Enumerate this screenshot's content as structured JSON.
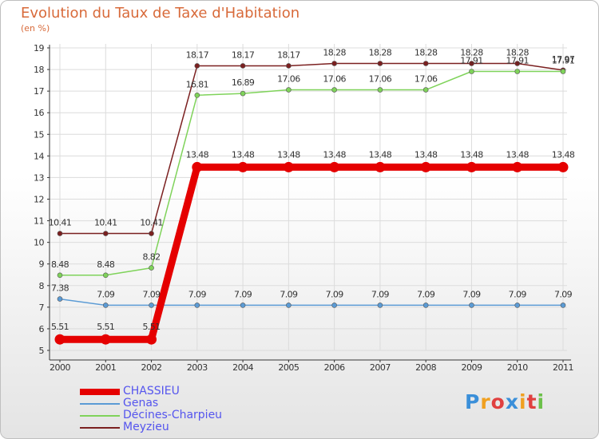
{
  "chart_data": {
    "type": "line",
    "title": "Evolution du Taux de Taxe d'Habitation",
    "ylabel": "(en %)",
    "xlabel": "",
    "x": [
      2000,
      2001,
      2002,
      2003,
      2004,
      2005,
      2006,
      2007,
      2008,
      2009,
      2010,
      2011
    ],
    "ylim": [
      5,
      19
    ],
    "yticks": [
      5,
      6,
      7,
      8,
      9,
      10,
      11,
      12,
      13,
      14,
      15,
      16,
      17,
      18,
      19
    ],
    "grid": true,
    "legend_position": "bottom-left",
    "series": [
      {
        "name": "CHASSIEU",
        "color": "#e50000",
        "values": [
          5.51,
          5.51,
          5.51,
          13.48,
          13.48,
          13.48,
          13.48,
          13.48,
          13.48,
          13.48,
          13.48,
          13.48
        ],
        "labels": [
          "5.51",
          "5.51",
          "5.51",
          "13.48",
          "13.48",
          "13.48",
          "13.48",
          "13.48",
          "13.48",
          "13.48",
          "13.48",
          "13.48"
        ]
      },
      {
        "name": "Genas",
        "color": "#5b9bd5",
        "values": [
          7.38,
          7.09,
          7.09,
          7.09,
          7.09,
          7.09,
          7.09,
          7.09,
          7.09,
          7.09,
          7.09,
          7.09
        ],
        "labels": [
          "7.38",
          "7.09",
          "7.09",
          "7.09",
          "7.09",
          "7.09",
          "7.09",
          "7.09",
          "7.09",
          "7.09",
          "7.09",
          "7.09"
        ]
      },
      {
        "name": "Décines-Charpieu",
        "color": "#7fd35a",
        "values": [
          8.48,
          8.48,
          8.82,
          16.81,
          16.89,
          17.06,
          17.06,
          17.06,
          17.06,
          17.91,
          17.91,
          17.91
        ],
        "labels": [
          "8.48",
          "8.48",
          "8.82",
          "16.81",
          "16.89",
          "17.06",
          "17.06",
          "17.06",
          "17.06",
          "17.91",
          "17.91",
          "17.91"
        ]
      },
      {
        "name": "Meyzieu",
        "color": "#7b2020",
        "values": [
          10.41,
          10.41,
          10.41,
          18.17,
          18.17,
          18.17,
          18.28,
          18.28,
          18.28,
          18.28,
          18.28,
          17.97
        ],
        "labels": [
          "10.41",
          "10.41",
          "10.41",
          "18.17",
          "18.17",
          "18.17",
          "18.28",
          "18.28",
          "18.28",
          "18.28",
          "18.28",
          "17.97"
        ]
      }
    ]
  },
  "logo": {
    "text": "Proxiti"
  }
}
